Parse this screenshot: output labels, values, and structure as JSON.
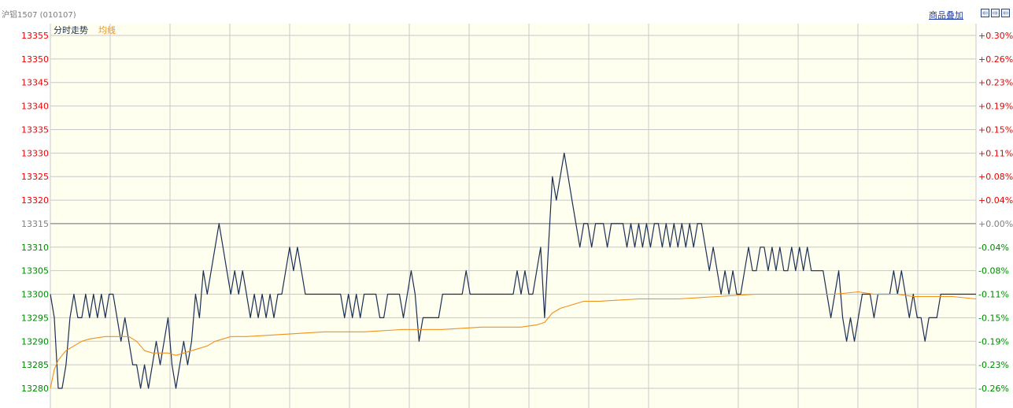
{
  "header": {
    "instrument_title": "沪铝1507 (010107)",
    "overlay_link": "商品叠加"
  },
  "nav_buttons": [
    {
      "icon": "arrow-left-icon",
      "glyph": "⇦"
    },
    {
      "icon": "arrow-right-icon",
      "glyph": "⇨"
    },
    {
      "icon": "arrow-left-icon",
      "glyph": "⇦"
    }
  ],
  "legend": {
    "price_label": "分时走势",
    "avg_label": "均线"
  },
  "colors": {
    "background": "#fffff0",
    "grid": "#c8c8c8",
    "price_line": "#1a2e55",
    "avg_line": "#f0901a",
    "up": "#ee0000",
    "down": "#008800",
    "neutral": "#808080"
  },
  "chart_data": {
    "type": "line",
    "title": "",
    "xlabel": "",
    "ylabel": "",
    "ylim": [
      13280,
      13355
    ],
    "pre_settle": 13315,
    "grid": true,
    "y_ticks_left": [
      "13355",
      "13350",
      "13345",
      "13340",
      "13335",
      "13330",
      "13325",
      "13320",
      "13315",
      "13310",
      "13305",
      "13300",
      "13295",
      "13290",
      "13285",
      "13280"
    ],
    "y_ticks_right": [
      "+0.30%",
      "+0.26%",
      "+0.23%",
      "+0.19%",
      "+0.15%",
      "+0.11%",
      "+0.08%",
      "+0.04%",
      "+0.00%",
      "-0.04%",
      "-0.08%",
      "-0.11%",
      "-0.15%",
      "-0.19%",
      "-0.23%",
      "-0.26%"
    ],
    "x_count": 236,
    "series": [
      {
        "name": "分时走势",
        "points": [
          [
            0,
            13300
          ],
          [
            1,
            13295
          ],
          [
            2,
            13280
          ],
          [
            3,
            13280
          ],
          [
            4,
            13285
          ],
          [
            5,
            13295
          ],
          [
            6,
            13300
          ],
          [
            7,
            13295
          ],
          [
            8,
            13295
          ],
          [
            9,
            13300
          ],
          [
            10,
            13295
          ],
          [
            11,
            13300
          ],
          [
            12,
            13295
          ],
          [
            13,
            13300
          ],
          [
            14,
            13295
          ],
          [
            15,
            13300
          ],
          [
            16,
            13300
          ],
          [
            17,
            13295
          ],
          [
            18,
            13290
          ],
          [
            19,
            13295
          ],
          [
            20,
            13290
          ],
          [
            21,
            13285
          ],
          [
            22,
            13285
          ],
          [
            23,
            13280
          ],
          [
            24,
            13285
          ],
          [
            25,
            13280
          ],
          [
            26,
            13285
          ],
          [
            27,
            13290
          ],
          [
            28,
            13285
          ],
          [
            29,
            13290
          ],
          [
            30,
            13295
          ],
          [
            31,
            13285
          ],
          [
            32,
            13280
          ],
          [
            33,
            13285
          ],
          [
            34,
            13290
          ],
          [
            35,
            13285
          ],
          [
            36,
            13290
          ],
          [
            37,
            13300
          ],
          [
            38,
            13295
          ],
          [
            39,
            13305
          ],
          [
            40,
            13300
          ],
          [
            41,
            13305
          ],
          [
            42,
            13310
          ],
          [
            43,
            13315
          ],
          [
            44,
            13310
          ],
          [
            45,
            13305
          ],
          [
            46,
            13300
          ],
          [
            47,
            13305
          ],
          [
            48,
            13300
          ],
          [
            49,
            13305
          ],
          [
            50,
            13300
          ],
          [
            51,
            13295
          ],
          [
            52,
            13300
          ],
          [
            53,
            13295
          ],
          [
            54,
            13300
          ],
          [
            55,
            13295
          ],
          [
            56,
            13300
          ],
          [
            57,
            13295
          ],
          [
            58,
            13300
          ],
          [
            59,
            13300
          ],
          [
            60,
            13305
          ],
          [
            61,
            13310
          ],
          [
            62,
            13305
          ],
          [
            63,
            13310
          ],
          [
            64,
            13305
          ],
          [
            65,
            13300
          ],
          [
            66,
            13300
          ],
          [
            67,
            13300
          ],
          [
            68,
            13300
          ],
          [
            69,
            13300
          ],
          [
            70,
            13300
          ],
          [
            71,
            13300
          ],
          [
            72,
            13300
          ],
          [
            73,
            13300
          ],
          [
            74,
            13300
          ],
          [
            75,
            13295
          ],
          [
            76,
            13300
          ],
          [
            77,
            13295
          ],
          [
            78,
            13300
          ],
          [
            79,
            13295
          ],
          [
            80,
            13300
          ],
          [
            81,
            13300
          ],
          [
            82,
            13300
          ],
          [
            83,
            13300
          ],
          [
            84,
            13295
          ],
          [
            85,
            13295
          ],
          [
            86,
            13300
          ],
          [
            87,
            13300
          ],
          [
            88,
            13300
          ],
          [
            89,
            13300
          ],
          [
            90,
            13295
          ],
          [
            91,
            13300
          ],
          [
            92,
            13305
          ],
          [
            93,
            13300
          ],
          [
            94,
            13290
          ],
          [
            95,
            13295
          ],
          [
            96,
            13295
          ],
          [
            97,
            13295
          ],
          [
            98,
            13295
          ],
          [
            99,
            13295
          ],
          [
            100,
            13300
          ],
          [
            101,
            13300
          ],
          [
            102,
            13300
          ],
          [
            103,
            13300
          ],
          [
            104,
            13300
          ],
          [
            105,
            13300
          ],
          [
            106,
            13305
          ],
          [
            107,
            13300
          ],
          [
            108,
            13300
          ],
          [
            109,
            13300
          ],
          [
            110,
            13300
          ],
          [
            111,
            13300
          ],
          [
            112,
            13300
          ],
          [
            113,
            13300
          ],
          [
            114,
            13300
          ],
          [
            115,
            13300
          ],
          [
            116,
            13300
          ],
          [
            117,
            13300
          ],
          [
            118,
            13300
          ],
          [
            119,
            13305
          ],
          [
            120,
            13300
          ],
          [
            121,
            13305
          ],
          [
            122,
            13300
          ],
          [
            123,
            13300
          ],
          [
            124,
            13305
          ],
          [
            125,
            13310
          ],
          [
            126,
            13295
          ],
          [
            127,
            13310
          ],
          [
            128,
            13325
          ],
          [
            129,
            13320
          ],
          [
            130,
            13325
          ],
          [
            131,
            13330
          ],
          [
            132,
            13325
          ],
          [
            133,
            13320
          ],
          [
            134,
            13315
          ],
          [
            135,
            13310
          ],
          [
            136,
            13315
          ],
          [
            137,
            13315
          ],
          [
            138,
            13310
          ],
          [
            139,
            13315
          ],
          [
            140,
            13315
          ],
          [
            141,
            13315
          ],
          [
            142,
            13310
          ],
          [
            143,
            13315
          ],
          [
            144,
            13315
          ],
          [
            145,
            13315
          ],
          [
            146,
            13315
          ],
          [
            147,
            13310
          ],
          [
            148,
            13315
          ],
          [
            149,
            13310
          ],
          [
            150,
            13315
          ],
          [
            151,
            13310
          ],
          [
            152,
            13315
          ],
          [
            153,
            13310
          ],
          [
            154,
            13315
          ],
          [
            155,
            13315
          ],
          [
            156,
            13310
          ],
          [
            157,
            13315
          ],
          [
            158,
            13310
          ],
          [
            159,
            13315
          ],
          [
            160,
            13310
          ],
          [
            161,
            13315
          ],
          [
            162,
            13310
          ],
          [
            163,
            13315
          ],
          [
            164,
            13310
          ],
          [
            165,
            13315
          ],
          [
            166,
            13315
          ],
          [
            167,
            13310
          ],
          [
            168,
            13305
          ],
          [
            169,
            13310
          ],
          [
            170,
            13305
          ],
          [
            171,
            13300
          ],
          [
            172,
            13305
          ],
          [
            173,
            13300
          ],
          [
            174,
            13305
          ],
          [
            175,
            13300
          ],
          [
            176,
            13300
          ],
          [
            177,
            13305
          ],
          [
            178,
            13310
          ],
          [
            179,
            13305
          ],
          [
            180,
            13305
          ],
          [
            181,
            13310
          ],
          [
            182,
            13310
          ],
          [
            183,
            13305
          ],
          [
            184,
            13310
          ],
          [
            185,
            13305
          ],
          [
            186,
            13310
          ],
          [
            187,
            13305
          ],
          [
            188,
            13305
          ],
          [
            189,
            13310
          ],
          [
            190,
            13305
          ],
          [
            191,
            13310
          ],
          [
            192,
            13305
          ],
          [
            193,
            13310
          ],
          [
            194,
            13305
          ],
          [
            195,
            13305
          ],
          [
            196,
            13305
          ],
          [
            197,
            13305
          ],
          [
            198,
            13300
          ],
          [
            199,
            13295
          ],
          [
            200,
            13300
          ],
          [
            201,
            13305
          ],
          [
            202,
            13295
          ],
          [
            203,
            13290
          ],
          [
            204,
            13295
          ],
          [
            205,
            13290
          ],
          [
            206,
            13295
          ],
          [
            207,
            13300
          ],
          [
            208,
            13300
          ],
          [
            209,
            13300
          ],
          [
            210,
            13295
          ],
          [
            211,
            13300
          ],
          [
            212,
            13300
          ],
          [
            213,
            13300
          ],
          [
            214,
            13300
          ],
          [
            215,
            13305
          ],
          [
            216,
            13300
          ],
          [
            217,
            13305
          ],
          [
            218,
            13300
          ],
          [
            219,
            13295
          ],
          [
            220,
            13300
          ],
          [
            221,
            13295
          ],
          [
            222,
            13295
          ],
          [
            223,
            13290
          ],
          [
            224,
            13295
          ],
          [
            225,
            13295
          ],
          [
            226,
            13295
          ],
          [
            227,
            13300
          ],
          [
            228,
            13300
          ],
          [
            229,
            13300
          ],
          [
            230,
            13300
          ],
          [
            231,
            13300
          ],
          [
            232,
            13300
          ],
          [
            233,
            13300
          ],
          [
            234,
            13300
          ],
          [
            235,
            13300
          ],
          [
            236,
            13300
          ]
        ]
      },
      {
        "name": "均线",
        "points": [
          [
            0,
            13280
          ],
          [
            1,
            13284
          ],
          [
            2,
            13286
          ],
          [
            3,
            13287
          ],
          [
            4,
            13288
          ],
          [
            6,
            13289
          ],
          [
            8,
            13290
          ],
          [
            10,
            13290.5
          ],
          [
            14,
            13291
          ],
          [
            18,
            13291
          ],
          [
            20,
            13291
          ],
          [
            22,
            13290
          ],
          [
            24,
            13288
          ],
          [
            26,
            13287.5
          ],
          [
            28,
            13287.5
          ],
          [
            30,
            13287.5
          ],
          [
            32,
            13287
          ],
          [
            34,
            13287.5
          ],
          [
            36,
            13288
          ],
          [
            38,
            13288.5
          ],
          [
            40,
            13289
          ],
          [
            42,
            13290
          ],
          [
            44,
            13290.5
          ],
          [
            46,
            13291
          ],
          [
            50,
            13291
          ],
          [
            60,
            13291.5
          ],
          [
            70,
            13292
          ],
          [
            80,
            13292
          ],
          [
            90,
            13292.5
          ],
          [
            100,
            13292.5
          ],
          [
            110,
            13293
          ],
          [
            120,
            13293
          ],
          [
            124,
            13293.5
          ],
          [
            126,
            13294
          ],
          [
            128,
            13296
          ],
          [
            130,
            13297
          ],
          [
            132,
            13297.5
          ],
          [
            134,
            13298
          ],
          [
            136,
            13298.5
          ],
          [
            140,
            13298.5
          ],
          [
            150,
            13299
          ],
          [
            160,
            13299
          ],
          [
            170,
            13299.5
          ],
          [
            180,
            13300
          ],
          [
            190,
            13300
          ],
          [
            200,
            13300
          ],
          [
            206,
            13300.5
          ],
          [
            210,
            13300
          ],
          [
            216,
            13300
          ],
          [
            220,
            13299.5
          ],
          [
            226,
            13299.5
          ],
          [
            230,
            13299.5
          ],
          [
            236,
            13299
          ]
        ]
      }
    ]
  }
}
